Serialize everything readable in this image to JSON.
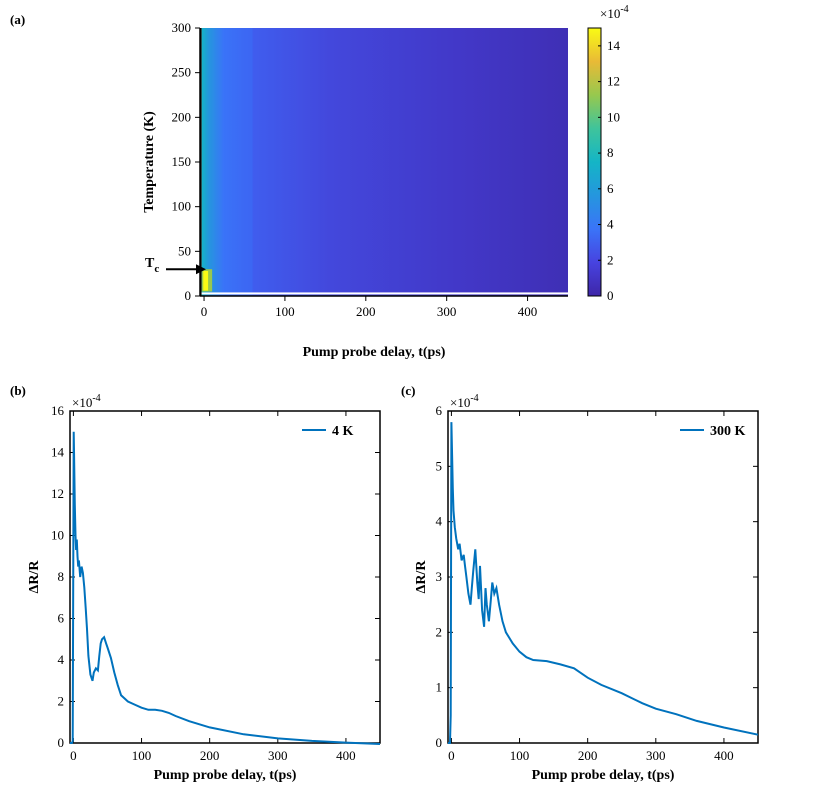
{
  "chart_data": [
    {
      "panel": "(a)",
      "type": "heatmap",
      "xlabel": "Pump probe delay, t(ps)",
      "ylabel": "Temperature (K)",
      "xlim": [
        -5,
        450
      ],
      "ylim": [
        0,
        300
      ],
      "xticks": [
        0,
        100,
        200,
        300,
        400
      ],
      "yticks": [
        0,
        50,
        100,
        150,
        200,
        250,
        300
      ],
      "colorbar": {
        "ticks": [
          0,
          2,
          4,
          6,
          8,
          10,
          12,
          14
        ],
        "range": [
          0,
          15
        ],
        "exponent": "×10",
        "exponent_power": "-4"
      },
      "annotation": {
        "text": "T",
        "sub": "c",
        "temperature": 30
      },
      "grid": false,
      "colormap": [
        "#3e26a8",
        "#4743e0",
        "#3a74f8",
        "#2596de",
        "#14b5c6",
        "#3fc49b",
        "#97c84e",
        "#e9ba36",
        "#f9fb14"
      ]
    },
    {
      "panel": "(b)",
      "type": "line",
      "xlabel": "Pump probe delay, t(ps)",
      "ylabel": "ΔR/R",
      "xlim": [
        -5,
        450
      ],
      "ylim": [
        0,
        16
      ],
      "xticks": [
        0,
        100,
        200,
        300,
        400
      ],
      "yticks": [
        0,
        2,
        4,
        6,
        8,
        10,
        12,
        14,
        16
      ],
      "exponent": "×10",
      "exponent_power": "-4",
      "legend_position": "top-right",
      "series": [
        {
          "name": "4 K",
          "color": "#0072bd",
          "x": [
            -5,
            -2,
            -1,
            0,
            0.5,
            1,
            2,
            3,
            4,
            5,
            6,
            7,
            8,
            10,
            12,
            14,
            16,
            18,
            20,
            22,
            25,
            28,
            30,
            33,
            36,
            38,
            40,
            42,
            45,
            48,
            50,
            55,
            60,
            65,
            70,
            80,
            90,
            100,
            110,
            120,
            130,
            140,
            150,
            170,
            200,
            250,
            300,
            350,
            400,
            450
          ],
          "y": [
            0,
            0,
            0.1,
            10.5,
            15.0,
            13.8,
            11.5,
            10.0,
            9.3,
            9.8,
            9.0,
            8.5,
            8.8,
            8.0,
            8.5,
            8.2,
            7.5,
            6.5,
            5.5,
            4.2,
            3.3,
            3.0,
            3.4,
            3.6,
            3.5,
            4.2,
            4.8,
            5.0,
            5.1,
            4.8,
            4.6,
            4.1,
            3.4,
            2.8,
            2.3,
            2.0,
            1.85,
            1.7,
            1.6,
            1.6,
            1.55,
            1.45,
            1.3,
            1.05,
            0.75,
            0.42,
            0.22,
            0.1,
            0.02,
            -0.05
          ]
        }
      ]
    },
    {
      "panel": "(c)",
      "type": "line",
      "xlabel": "Pump probe delay, t(ps)",
      "ylabel": "ΔR/R",
      "xlim": [
        -5,
        450
      ],
      "ylim": [
        0,
        6
      ],
      "xticks": [
        0,
        100,
        200,
        300,
        400
      ],
      "yticks": [
        0,
        1,
        2,
        3,
        4,
        5,
        6
      ],
      "exponent": "×10",
      "exponent_power": "-4",
      "legend_position": "top-right",
      "series": [
        {
          "name": "300 K",
          "color": "#0072bd",
          "x": [
            -5,
            -2,
            -1,
            0,
            1,
            2,
            3,
            5,
            7,
            10,
            12,
            15,
            18,
            20,
            22,
            25,
            28,
            30,
            32,
            35,
            38,
            40,
            42,
            45,
            48,
            50,
            52,
            55,
            58,
            60,
            63,
            66,
            70,
            75,
            80,
            90,
            100,
            110,
            120,
            140,
            160,
            180,
            200,
            220,
            250,
            280,
            300,
            330,
            360,
            400,
            450
          ],
          "y": [
            0,
            0,
            0.5,
            5.8,
            5.2,
            4.6,
            4.2,
            3.9,
            3.7,
            3.5,
            3.6,
            3.3,
            3.4,
            3.2,
            3.0,
            2.7,
            2.5,
            2.8,
            3.1,
            3.5,
            2.9,
            2.6,
            3.2,
            2.4,
            2.1,
            2.8,
            2.5,
            2.2,
            2.6,
            2.9,
            2.7,
            2.8,
            2.5,
            2.2,
            2.0,
            1.8,
            1.65,
            1.55,
            1.5,
            1.48,
            1.42,
            1.35,
            1.18,
            1.05,
            0.9,
            0.72,
            0.62,
            0.52,
            0.4,
            0.28,
            0.15
          ]
        }
      ]
    }
  ]
}
